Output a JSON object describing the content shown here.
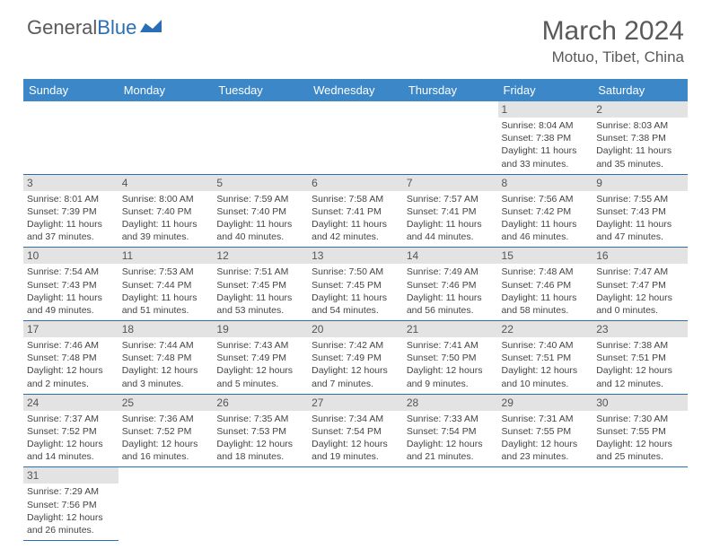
{
  "logo": {
    "text1": "General",
    "text2": "Blue"
  },
  "title": "March 2024",
  "location": "Motuo, Tibet, China",
  "colors": {
    "header_bg": "#3b87c8",
    "header_text": "#ffffff",
    "day_bg": "#e3e3e3",
    "text": "#444444",
    "rule": "#2a6fb5",
    "logo_gray": "#5a5a5a",
    "logo_blue": "#2a6fb5"
  },
  "weekdays": [
    "Sunday",
    "Monday",
    "Tuesday",
    "Wednesday",
    "Thursday",
    "Friday",
    "Saturday"
  ],
  "first_weekday_index": 5,
  "days": [
    {
      "n": 1,
      "sunrise": "8:04 AM",
      "sunset": "7:38 PM",
      "daylight": "11 hours and 33 minutes."
    },
    {
      "n": 2,
      "sunrise": "8:03 AM",
      "sunset": "7:38 PM",
      "daylight": "11 hours and 35 minutes."
    },
    {
      "n": 3,
      "sunrise": "8:01 AM",
      "sunset": "7:39 PM",
      "daylight": "11 hours and 37 minutes."
    },
    {
      "n": 4,
      "sunrise": "8:00 AM",
      "sunset": "7:40 PM",
      "daylight": "11 hours and 39 minutes."
    },
    {
      "n": 5,
      "sunrise": "7:59 AM",
      "sunset": "7:40 PM",
      "daylight": "11 hours and 40 minutes."
    },
    {
      "n": 6,
      "sunrise": "7:58 AM",
      "sunset": "7:41 PM",
      "daylight": "11 hours and 42 minutes."
    },
    {
      "n": 7,
      "sunrise": "7:57 AM",
      "sunset": "7:41 PM",
      "daylight": "11 hours and 44 minutes."
    },
    {
      "n": 8,
      "sunrise": "7:56 AM",
      "sunset": "7:42 PM",
      "daylight": "11 hours and 46 minutes."
    },
    {
      "n": 9,
      "sunrise": "7:55 AM",
      "sunset": "7:43 PM",
      "daylight": "11 hours and 47 minutes."
    },
    {
      "n": 10,
      "sunrise": "7:54 AM",
      "sunset": "7:43 PM",
      "daylight": "11 hours and 49 minutes."
    },
    {
      "n": 11,
      "sunrise": "7:53 AM",
      "sunset": "7:44 PM",
      "daylight": "11 hours and 51 minutes."
    },
    {
      "n": 12,
      "sunrise": "7:51 AM",
      "sunset": "7:45 PM",
      "daylight": "11 hours and 53 minutes."
    },
    {
      "n": 13,
      "sunrise": "7:50 AM",
      "sunset": "7:45 PM",
      "daylight": "11 hours and 54 minutes."
    },
    {
      "n": 14,
      "sunrise": "7:49 AM",
      "sunset": "7:46 PM",
      "daylight": "11 hours and 56 minutes."
    },
    {
      "n": 15,
      "sunrise": "7:48 AM",
      "sunset": "7:46 PM",
      "daylight": "11 hours and 58 minutes."
    },
    {
      "n": 16,
      "sunrise": "7:47 AM",
      "sunset": "7:47 PM",
      "daylight": "12 hours and 0 minutes."
    },
    {
      "n": 17,
      "sunrise": "7:46 AM",
      "sunset": "7:48 PM",
      "daylight": "12 hours and 2 minutes."
    },
    {
      "n": 18,
      "sunrise": "7:44 AM",
      "sunset": "7:48 PM",
      "daylight": "12 hours and 3 minutes."
    },
    {
      "n": 19,
      "sunrise": "7:43 AM",
      "sunset": "7:49 PM",
      "daylight": "12 hours and 5 minutes."
    },
    {
      "n": 20,
      "sunrise": "7:42 AM",
      "sunset": "7:49 PM",
      "daylight": "12 hours and 7 minutes."
    },
    {
      "n": 21,
      "sunrise": "7:41 AM",
      "sunset": "7:50 PM",
      "daylight": "12 hours and 9 minutes."
    },
    {
      "n": 22,
      "sunrise": "7:40 AM",
      "sunset": "7:51 PM",
      "daylight": "12 hours and 10 minutes."
    },
    {
      "n": 23,
      "sunrise": "7:38 AM",
      "sunset": "7:51 PM",
      "daylight": "12 hours and 12 minutes."
    },
    {
      "n": 24,
      "sunrise": "7:37 AM",
      "sunset": "7:52 PM",
      "daylight": "12 hours and 14 minutes."
    },
    {
      "n": 25,
      "sunrise": "7:36 AM",
      "sunset": "7:52 PM",
      "daylight": "12 hours and 16 minutes."
    },
    {
      "n": 26,
      "sunrise": "7:35 AM",
      "sunset": "7:53 PM",
      "daylight": "12 hours and 18 minutes."
    },
    {
      "n": 27,
      "sunrise": "7:34 AM",
      "sunset": "7:54 PM",
      "daylight": "12 hours and 19 minutes."
    },
    {
      "n": 28,
      "sunrise": "7:33 AM",
      "sunset": "7:54 PM",
      "daylight": "12 hours and 21 minutes."
    },
    {
      "n": 29,
      "sunrise": "7:31 AM",
      "sunset": "7:55 PM",
      "daylight": "12 hours and 23 minutes."
    },
    {
      "n": 30,
      "sunrise": "7:30 AM",
      "sunset": "7:55 PM",
      "daylight": "12 hours and 25 minutes."
    },
    {
      "n": 31,
      "sunrise": "7:29 AM",
      "sunset": "7:56 PM",
      "daylight": "12 hours and 26 minutes."
    }
  ],
  "labels": {
    "sunrise": "Sunrise:",
    "sunset": "Sunset:",
    "daylight": "Daylight:"
  }
}
